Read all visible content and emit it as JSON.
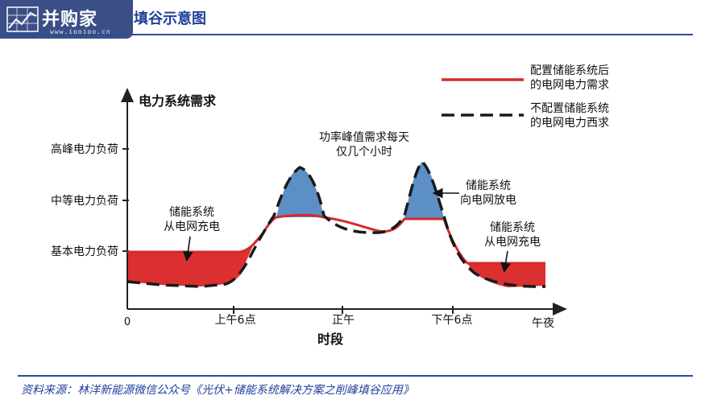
{
  "header": {
    "logo_name": "并购家",
    "logo_url": "www.ipoipo.cn",
    "title": "填谷示意图"
  },
  "diagram": {
    "y_axis_title": "电力系统需求",
    "x_axis_title": "时段",
    "y_labels": {
      "high": "高峰电力负荷",
      "mid": "中等电力负荷",
      "base": "基本电力负荷"
    },
    "x_labels": {
      "origin": "0",
      "am6": "上午6点",
      "noon": "正午",
      "pm6": "下午6点",
      "midnight": "午夜"
    },
    "legend": {
      "with_storage": [
        "配置储能系统后",
        "的电网电力需求"
      ],
      "without_storage": [
        "不配置储能系统",
        "的电网电力西求"
      ]
    },
    "annotations": {
      "peak": [
        "功率峰值需求每天",
        "仅几个小时"
      ],
      "charge_left": [
        "储能系统",
        "从电网充电"
      ],
      "discharge": [
        "储能系统",
        "向电网放电"
      ],
      "charge_right": [
        "储能系统",
        "从电网充电"
      ]
    },
    "colors": {
      "storage_curve": "#d42a2a",
      "charge_fill": "#dc3030",
      "discharge_fill": "#5b8fc5",
      "baseline_dash": "#1a1a1a"
    }
  },
  "footer": {
    "source": "资料来源：林洋新能源微信公众号《光伏+储能系统解决方案之削峰填谷应用》"
  }
}
